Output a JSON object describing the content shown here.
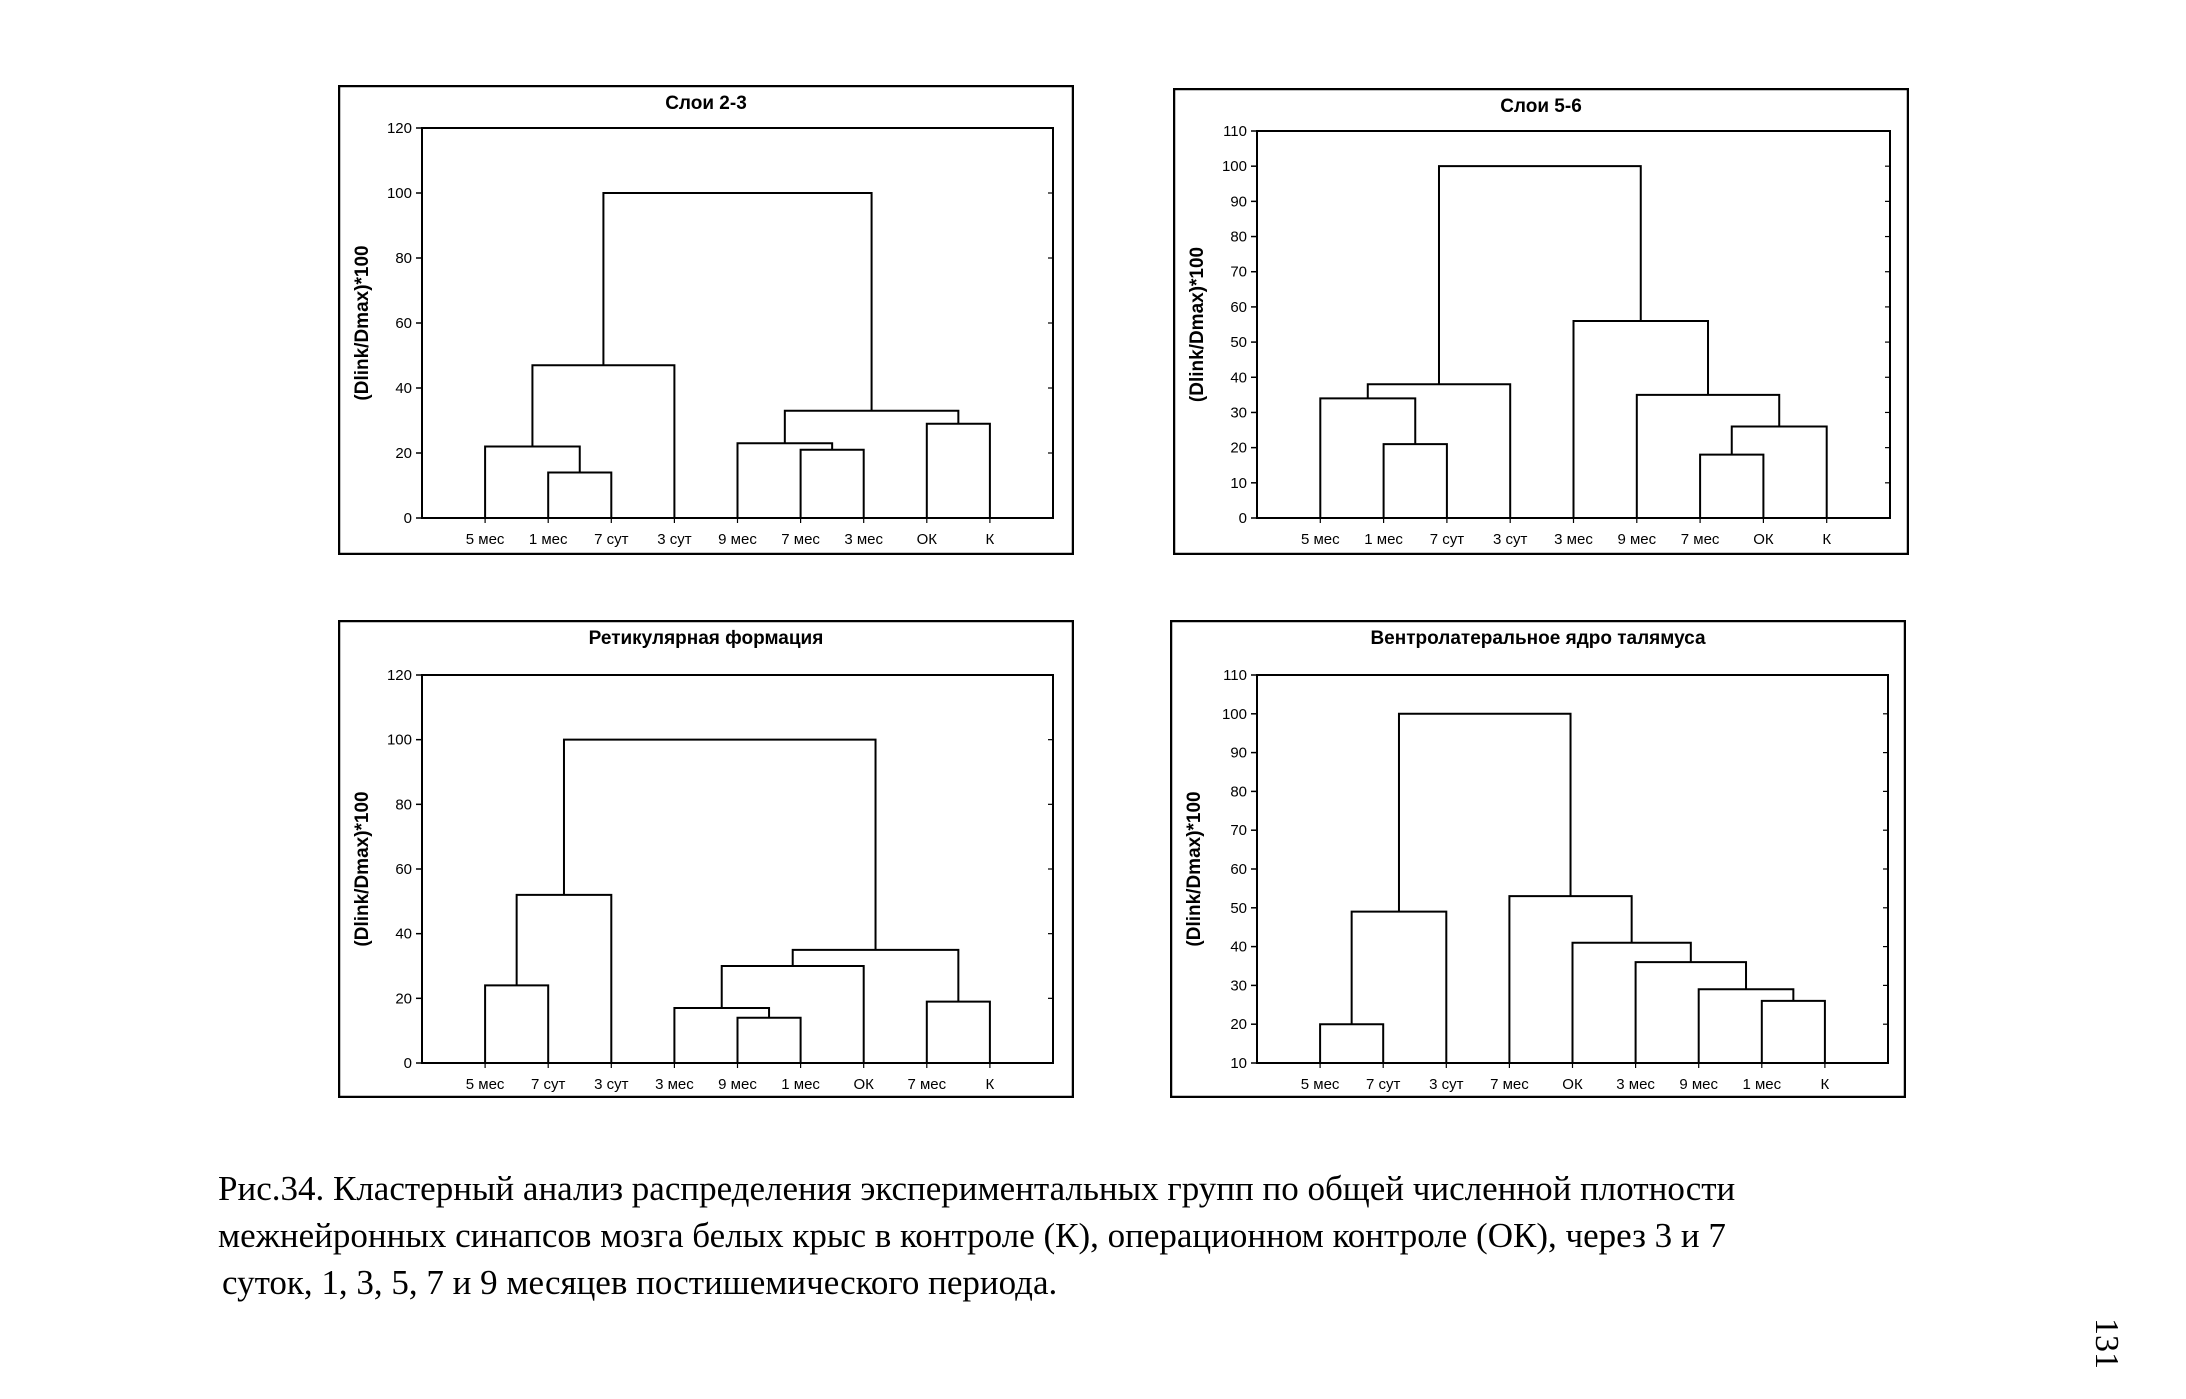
{
  "chart_data": [
    {
      "type": "dendrogram",
      "title": "Слои 2-3",
      "ylabel": "(Dlink/Dmax)*100",
      "ylim": [
        0,
        120
      ],
      "yticks": [
        0,
        20,
        40,
        60,
        80,
        100,
        120
      ],
      "leaves": [
        "5 мес",
        "1 мес",
        "7 сут",
        "3 сут",
        "9 мес",
        "7 мес",
        "3 мес",
        "ОК",
        "К"
      ],
      "merges": [
        {
          "a": 1,
          "b": 2,
          "h": 14
        },
        {
          "a": 0,
          "b": 9,
          "h": 22
        },
        {
          "a": 5,
          "b": 6,
          "h": 21
        },
        {
          "a": 4,
          "b": 11,
          "h": 23
        },
        {
          "a": 7,
          "b": 8,
          "h": 29
        },
        {
          "a": 12,
          "b": 13,
          "h": 33
        },
        {
          "a": 10,
          "b": 3,
          "h": 47
        },
        {
          "a": 15,
          "b": 14,
          "h": 100
        }
      ]
    },
    {
      "type": "dendrogram",
      "title": "Слои 5-6",
      "ylabel": "(Dlink/Dmax)*100",
      "ylim": [
        0,
        110
      ],
      "yticks": [
        0,
        10,
        20,
        30,
        40,
        50,
        60,
        70,
        80,
        90,
        100,
        110
      ],
      "leaves": [
        "5 мес",
        "1 мес",
        "7 сут",
        "3 сут",
        "3 мес",
        "9 мес",
        "7 мес",
        "ОК",
        "К"
      ],
      "merges": [
        {
          "a": 1,
          "b": 2,
          "h": 21
        },
        {
          "a": 0,
          "b": 9,
          "h": 34
        },
        {
          "a": 10,
          "b": 3,
          "h": 38
        },
        {
          "a": 6,
          "b": 7,
          "h": 18
        },
        {
          "a": 12,
          "b": 8,
          "h": 26
        },
        {
          "a": 5,
          "b": 13,
          "h": 35
        },
        {
          "a": 4,
          "b": 14,
          "h": 56
        },
        {
          "a": 11,
          "b": 15,
          "h": 100
        }
      ]
    },
    {
      "type": "dendrogram",
      "title": "Ретикулярная формация",
      "ylabel": "(Dlink/Dmax)*100",
      "ylim": [
        0,
        120
      ],
      "yticks": [
        0,
        20,
        40,
        60,
        80,
        100,
        120
      ],
      "leaves": [
        "5 мес",
        "7 сут",
        "3 сут",
        "3 мес",
        "9 мес",
        "1 мес",
        "ОК",
        "7 мес",
        "К"
      ],
      "merges": [
        {
          "a": 0,
          "b": 1,
          "h": 24
        },
        {
          "a": 9,
          "b": 2,
          "h": 52
        },
        {
          "a": 4,
          "b": 5,
          "h": 14
        },
        {
          "a": 3,
          "b": 11,
          "h": 17
        },
        {
          "a": 12,
          "b": 6,
          "h": 30
        },
        {
          "a": 7,
          "b": 8,
          "h": 19
        },
        {
          "a": 13,
          "b": 14,
          "h": 35
        },
        {
          "a": 10,
          "b": 15,
          "h": 100
        }
      ]
    },
    {
      "type": "dendrogram",
      "title": "Вентролатеральное ядро талямуса",
      "ylabel": "(Dlink/Dmax)*100",
      "ylim": [
        10,
        110
      ],
      "yticks": [
        10,
        20,
        30,
        40,
        50,
        60,
        70,
        80,
        90,
        100,
        110
      ],
      "leaves": [
        "5 мес",
        "7 сут",
        "3 сут",
        "7 мес",
        "ОК",
        "3 мес",
        "9 мес",
        "1 мес",
        "К"
      ],
      "merges": [
        {
          "a": 0,
          "b": 1,
          "h": 20
        },
        {
          "a": 9,
          "b": 2,
          "h": 49
        },
        {
          "a": 7,
          "b": 8,
          "h": 26
        },
        {
          "a": 6,
          "b": 11,
          "h": 29
        },
        {
          "a": 5,
          "b": 12,
          "h": 36
        },
        {
          "a": 4,
          "b": 13,
          "h": 41
        },
        {
          "a": 3,
          "b": 14,
          "h": 53
        },
        {
          "a": 10,
          "b": 15,
          "h": 100
        }
      ]
    }
  ],
  "caption": {
    "line1": "Рис.34. Кластерный анализ распределения экспериментальных групп по общей численной плотности",
    "line2": "межнейронных синапсов мозга белых крыс в контроле (К), операционном контроле (ОК), через 3 и 7",
    "line3": "суток, 1, 3, 5, 7 и 9 месяцев постишемического периода."
  },
  "page_number": "131"
}
